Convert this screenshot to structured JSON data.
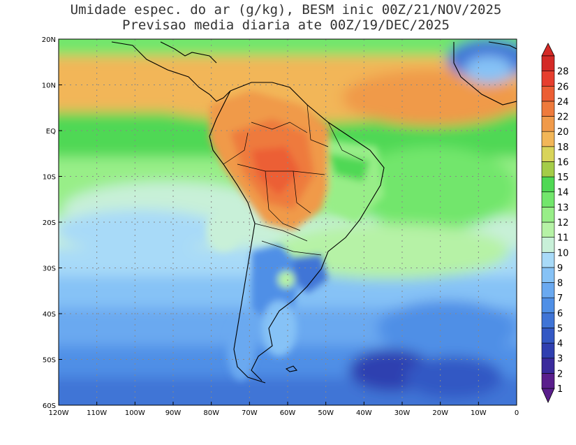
{
  "title_line1": "Umidade espec. do ar (g/kg), BESM inic 00Z/21/NOV/2025",
  "title_line2": "Previsao media diaria ate 00Z/19/DEC/2025",
  "map": {
    "lon_labels": [
      "120W",
      "110W",
      "100W",
      "90W",
      "80W",
      "70W",
      "60W",
      "50W",
      "40W",
      "30W",
      "20W",
      "10W",
      "0"
    ],
    "lat_labels": [
      "20N",
      "10N",
      "EQ",
      "10S",
      "20S",
      "30S",
      "40S",
      "50S",
      "60S"
    ],
    "extent": {
      "lon_min": -120,
      "lon_max": 0,
      "lat_min": -60,
      "lat_max": 20
    }
  },
  "colorbar": {
    "levels": [
      "1",
      "2",
      "3",
      "4",
      "5",
      "6",
      "7",
      "8",
      "9",
      "10",
      "11",
      "12",
      "13",
      "14",
      "15",
      "16",
      "18",
      "20",
      "22",
      "24",
      "26",
      "28"
    ],
    "colors": [
      "#5a1e8c",
      "#3a2a9c",
      "#2f3fb0",
      "#3358c4",
      "#3f74d6",
      "#4f8fe6",
      "#6aa9f0",
      "#86c2f6",
      "#a8daf8",
      "#c8f0d8",
      "#b6f2a6",
      "#98ee88",
      "#72e66c",
      "#4fd854",
      "#a4cc48",
      "#d8d45a",
      "#f2b658",
      "#f09a4a",
      "#ee7a3c",
      "#ec5e34",
      "#e63e2e",
      "#d42a26"
    ]
  },
  "chart_data": {
    "type": "heatmap",
    "title": "Umidade espec. do ar (g/kg), BESM inic 00Z/21/NOV/2025",
    "subtitle": "Previsao media diaria ate 00Z/19/DEC/2025",
    "units": "g/kg",
    "x_range": [
      -120,
      0
    ],
    "y_range": [
      -60,
      20
    ],
    "contour_levels": [
      1,
      2,
      3,
      4,
      5,
      6,
      7,
      8,
      9,
      10,
      11,
      12,
      13,
      14,
      15,
      16,
      18,
      20,
      22,
      24,
      26,
      28
    ]
  }
}
